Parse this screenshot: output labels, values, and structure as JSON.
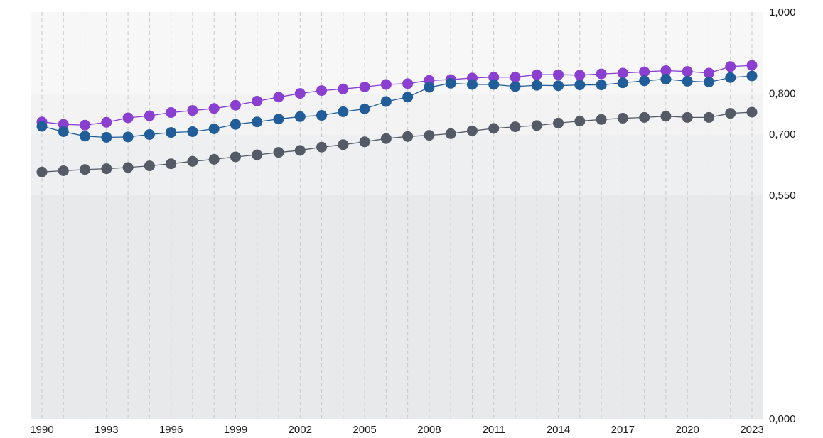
{
  "chart_data": {
    "type": "line",
    "x": [
      1990,
      1991,
      1992,
      1993,
      1994,
      1995,
      1996,
      1997,
      1998,
      1999,
      2000,
      2001,
      2002,
      2003,
      2004,
      2005,
      2006,
      2007,
      2008,
      2009,
      2010,
      2011,
      2012,
      2013,
      2014,
      2015,
      2016,
      2017,
      2018,
      2019,
      2020,
      2021,
      2022,
      2023
    ],
    "x_tick_labels": [
      "1990",
      "1993",
      "1996",
      "1999",
      "2002",
      "2005",
      "2008",
      "2011",
      "2014",
      "2017",
      "2020",
      "2023"
    ],
    "y_tick_values": [
      0,
      0.55,
      0.7,
      0.8,
      1.0
    ],
    "y_tick_labels": [
      "0,000",
      "0,550",
      "0,700",
      "0,800",
      "1,000"
    ],
    "ylim": [
      0,
      1.0
    ],
    "bands": [
      {
        "from": 0.0,
        "to": 0.55,
        "color": "#e8e9eb"
      },
      {
        "from": 0.55,
        "to": 0.7,
        "color": "#eeeff1"
      },
      {
        "from": 0.7,
        "to": 0.8,
        "color": "#f3f3f4"
      },
      {
        "from": 0.8,
        "to": 1.0,
        "color": "#f7f7f7"
      }
    ],
    "grid": "vertical dashed",
    "series": [
      {
        "color": "#8a3fd1",
        "values": [
          0.73,
          0.724,
          0.722,
          0.729,
          0.74,
          0.745,
          0.753,
          0.758,
          0.763,
          0.771,
          0.781,
          0.791,
          0.8,
          0.807,
          0.811,
          0.816,
          0.822,
          0.824,
          0.832,
          0.834,
          0.838,
          0.84,
          0.84,
          0.846,
          0.846,
          0.845,
          0.848,
          0.85,
          0.853,
          0.856,
          0.854,
          0.85,
          0.866,
          0.869
        ]
      },
      {
        "color": "#215e99",
        "values": [
          0.719,
          0.706,
          0.695,
          0.692,
          0.693,
          0.699,
          0.704,
          0.706,
          0.713,
          0.724,
          0.73,
          0.737,
          0.743,
          0.746,
          0.755,
          0.762,
          0.78,
          0.791,
          0.815,
          0.825,
          0.822,
          0.822,
          0.817,
          0.82,
          0.819,
          0.821,
          0.821,
          0.826,
          0.831,
          0.835,
          0.83,
          0.828,
          0.839,
          0.843
        ]
      },
      {
        "color": "#555b66",
        "values": [
          0.607,
          0.61,
          0.613,
          0.615,
          0.618,
          0.622,
          0.627,
          0.633,
          0.638,
          0.644,
          0.649,
          0.655,
          0.66,
          0.668,
          0.674,
          0.681,
          0.689,
          0.694,
          0.697,
          0.701,
          0.708,
          0.714,
          0.718,
          0.721,
          0.727,
          0.732,
          0.736,
          0.739,
          0.741,
          0.744,
          0.741,
          0.741,
          0.751,
          0.754
        ]
      }
    ]
  }
}
